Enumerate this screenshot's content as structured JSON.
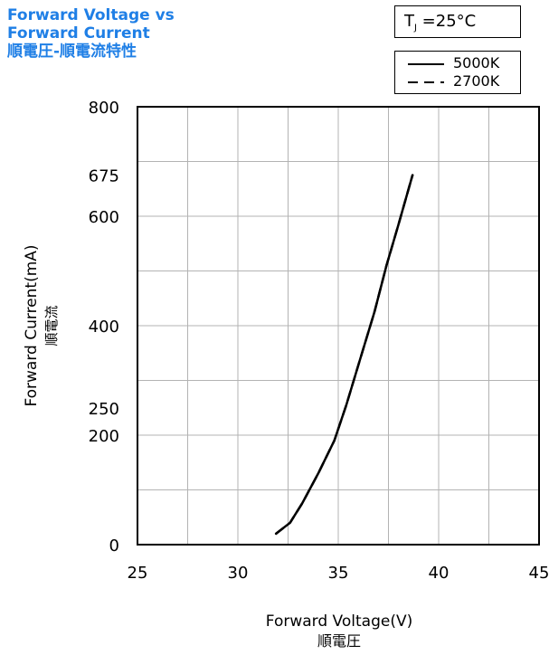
{
  "title_lines": [
    "Forward Voltage vs",
    "Forward Current",
    "順電圧-順電流特性"
  ],
  "condition": {
    "main": "T",
    "sub": "J",
    "rest": " =25°C"
  },
  "legend": [
    {
      "label": "5000K",
      "style": "solid"
    },
    {
      "label": "2700K",
      "style": "dashed"
    }
  ],
  "xaxis": {
    "label": "Forward Voltage(V)",
    "label_sub": "順電圧"
  },
  "yaxis": {
    "label": "Forward Current(mA)",
    "label_sub": "順電流"
  },
  "colors": {
    "title": "#1f7fe6",
    "grid": "#b3b3b3",
    "line": "#000000"
  },
  "chart_data": {
    "type": "line",
    "xlim": [
      25,
      45
    ],
    "ylim": [
      0,
      800
    ],
    "x_ticks": [
      25,
      30,
      35,
      40,
      45
    ],
    "y_ticks": [
      0,
      200,
      250,
      400,
      600,
      675,
      800
    ],
    "x_grid": [
      25,
      27.5,
      30,
      32.5,
      35,
      37.5,
      40,
      42.5,
      45
    ],
    "y_grid": [
      0,
      100,
      200,
      300,
      400,
      500,
      600,
      700,
      800
    ],
    "grid": true,
    "legend_position": "top-right",
    "series": [
      {
        "name": "5000K",
        "style": "solid",
        "x": [
          31.9,
          32.6,
          33.2,
          34.0,
          34.8,
          35.4,
          36.1,
          36.8,
          37.4,
          38.0,
          38.7
        ],
        "y": [
          20,
          40,
          75,
          130,
          190,
          255,
          340,
          425,
          510,
          585,
          675
        ]
      },
      {
        "name": "2700K",
        "style": "dashed",
        "x": [
          31.9,
          32.6,
          33.2,
          34.0,
          34.8,
          35.4,
          36.1,
          36.8,
          37.4,
          38.0,
          38.7
        ],
        "y": [
          20,
          40,
          75,
          130,
          190,
          255,
          340,
          425,
          510,
          585,
          675
        ]
      }
    ]
  }
}
